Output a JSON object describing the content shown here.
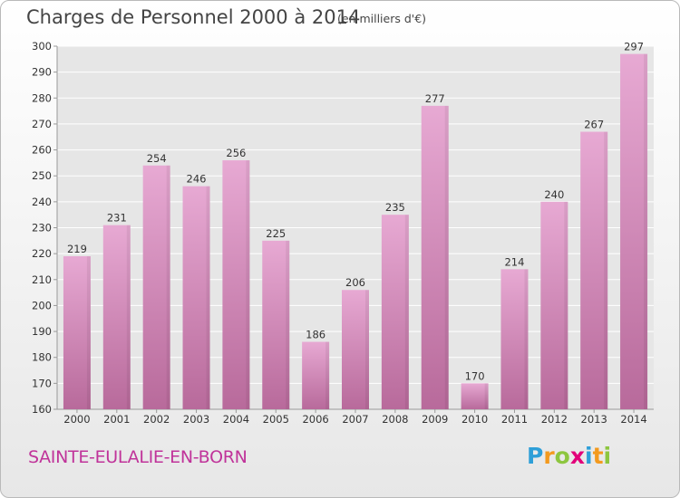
{
  "title": "Charges de Personnel 2000 à 2014",
  "subtitle": "(en milliers d'€)",
  "city": "SAINTE-EULALIE-EN-BORN",
  "logo": {
    "letters": [
      "P",
      "r",
      "o",
      "x",
      "i",
      "t",
      "i"
    ],
    "colors": [
      "#2e9fd8",
      "#f39a1e",
      "#8dc63f",
      "#e2007a",
      "#2e9fd8",
      "#f39a1e",
      "#8dc63f"
    ]
  },
  "colors": {
    "bar_light": "#e7a9d3",
    "bar_dark": "#b86a9b",
    "city": "#c0339a"
  },
  "chart_data": {
    "type": "bar",
    "categories": [
      "2000",
      "2001",
      "2002",
      "2003",
      "2004",
      "2005",
      "2006",
      "2007",
      "2008",
      "2009",
      "2010",
      "2011",
      "2012",
      "2013",
      "2014"
    ],
    "values": [
      219,
      231,
      254,
      246,
      256,
      225,
      186,
      206,
      235,
      277,
      170,
      214,
      240,
      267,
      297
    ],
    "ylim": [
      160,
      300
    ],
    "yticks": [
      160,
      170,
      180,
      190,
      200,
      210,
      220,
      230,
      240,
      250,
      260,
      270,
      280,
      290,
      300
    ],
    "grid": true,
    "data_labels": true,
    "title": "Charges de Personnel 2000 à 2014",
    "xlabel": "",
    "ylabel": ""
  }
}
